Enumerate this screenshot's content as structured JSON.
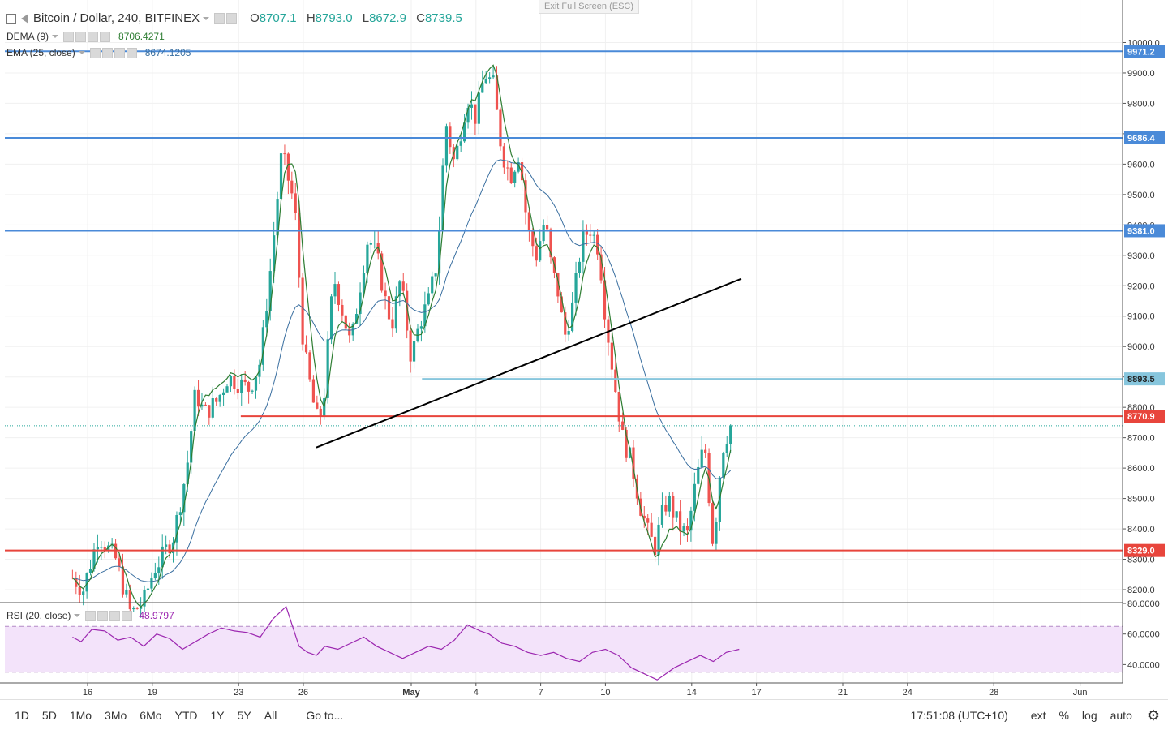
{
  "legend": {
    "symbol": "Bitcoin / Dollar, 240, BITFINEX",
    "open_label": "O",
    "open": "8707.1",
    "high_label": "H",
    "high": "8793.0",
    "low_label": "L",
    "low": "8672.9",
    "close_label": "C",
    "close": "8739.5",
    "dema_label": "DEMA (9)",
    "dema_value": "8706.4271",
    "ema_label": "EMA (25, close)",
    "ema_value": "8674.1205",
    "rsi_label": "RSI (20, close)",
    "rsi_value": "48.9797"
  },
  "exit_fullscreen": "Exit Full Screen (ESC)",
  "toolbar": {
    "ranges": [
      "1D",
      "5D",
      "1Mo",
      "3Mo",
      "6Mo",
      "YTD",
      "1Y",
      "5Y",
      "All"
    ],
    "goto": "Go to...",
    "time": "17:51:08 (UTC+10)",
    "ext": "ext",
    "percent": "%",
    "log": "log",
    "auto": "auto"
  },
  "colors": {
    "up": "#26a69a",
    "down": "#ef5350",
    "support_resistance_blue": "#4a8ad8",
    "support_resistance_red": "#e8453c",
    "light_blue": "#87c6dd",
    "dema": "#2e7d32",
    "ema": "#3a6fa0",
    "rsi": "#9c27b0"
  },
  "chart_data": {
    "type": "candlestick",
    "price_axis": {
      "ticks": [
        "10000.0",
        "9900.0",
        "9800.0",
        "9700.0",
        "9600.0",
        "9500.0",
        "9400.0",
        "9300.0",
        "9200.0",
        "9100.0",
        "9000.0",
        "8900.0",
        "8800.0",
        "8700.0",
        "8600.0",
        "8500.0",
        "8400.0",
        "8300.0",
        "8200.0"
      ],
      "range": [
        8160,
        10060
      ]
    },
    "time_axis": {
      "labels": [
        "16",
        "19",
        "23",
        "26",
        "May",
        "4",
        "7",
        "10",
        "14",
        "17",
        "21",
        "24",
        "28",
        "Jun"
      ],
      "positions_days": [
        -15,
        -12,
        -8,
        -5,
        0,
        3,
        6,
        9,
        13,
        16,
        20,
        23,
        27,
        31
      ]
    },
    "horizontal_levels": [
      {
        "value": 9971.2,
        "label": "9971.2",
        "color": "blue"
      },
      {
        "value": 9686.4,
        "label": "9686.4",
        "color": "blue"
      },
      {
        "value": 9381.0,
        "label": "9381.0",
        "color": "blue"
      },
      {
        "value": 8893.5,
        "label": "8893.5",
        "color": "lightblue",
        "from_day": 0.5
      },
      {
        "value": 8770.9,
        "label": "8770.9",
        "color": "red",
        "from_day": -7.9
      },
      {
        "value": 8329.0,
        "label": "8329.0",
        "color": "red"
      }
    ],
    "last_price": 8739.5,
    "trendline": {
      "from": [
        -4.4,
        8668
      ],
      "to": [
        15.3,
        9223
      ]
    },
    "price_path_days": [
      -15.7,
      -15.2,
      -14.5,
      -13.7,
      -13.0,
      -12.4,
      -11.9,
      -11.6,
      -11.0,
      -10.4,
      -10.0,
      -9.6,
      -9.0,
      -8.5,
      -8.0,
      -7.5,
      -7.0,
      -6.5,
      -6.0,
      -5.4,
      -5.0,
      -4.7,
      -4.4,
      -4.1,
      -3.6,
      -3.2,
      -2.8,
      -2.4,
      -2.0,
      -1.6,
      -1.2,
      -0.9,
      -0.5,
      0.0,
      0.4,
      0.8,
      1.2,
      1.6,
      2.0,
      2.6,
      3.0,
      3.4,
      3.8,
      4.2,
      4.6,
      5.0,
      5.4,
      5.8,
      6.2,
      6.5,
      6.8,
      7.1,
      7.5,
      7.9,
      8.3,
      8.7,
      9.0,
      9.4,
      9.8,
      10.2,
      10.6,
      11.0,
      11.3,
      11.6,
      11.9,
      12.2,
      12.5,
      12.8,
      13.2,
      13.6,
      14.0,
      14.4,
      14.8
    ],
    "price_path_close": [
      8240,
      8200,
      8380,
      8300,
      8120,
      8160,
      8270,
      8300,
      8380,
      8600,
      8850,
      8780,
      8820,
      8900,
      8880,
      8860,
      8950,
      9270,
      9640,
      9460,
      9000,
      8880,
      8760,
      8790,
      9230,
      9120,
      9000,
      9190,
      9360,
      9300,
      9150,
      9070,
      9220,
      8960,
      9080,
      9150,
      9280,
      9740,
      9600,
      9820,
      9750,
      9900,
      9860,
      9640,
      9560,
      9640,
      9380,
      9300,
      9420,
      9260,
      9180,
      9030,
      9140,
      9350,
      9390,
      9320,
      9100,
      8890,
      8700,
      8620,
      8480,
      8380,
      8340,
      8440,
      8500,
      8440,
      8400,
      8380,
      8560,
      8680,
      8340,
      8660,
      8740
    ],
    "rsi": {
      "axis_ticks": [
        "80.0000",
        "60.0000",
        "40.0000"
      ],
      "band": [
        35,
        65
      ],
      "range": [
        28,
        80
      ],
      "path_days": [
        -15.7,
        -15.3,
        -14.8,
        -14.2,
        -13.6,
        -13.0,
        -12.4,
        -11.8,
        -11.2,
        -10.6,
        -10.0,
        -9.4,
        -8.8,
        -8.2,
        -7.6,
        -7.0,
        -6.4,
        -5.8,
        -5.2,
        -4.8,
        -4.4,
        -4.0,
        -3.4,
        -2.8,
        -2.2,
        -1.6,
        -1.0,
        -0.4,
        0.2,
        0.8,
        1.4,
        2.0,
        2.6,
        3.2,
        3.6,
        4.2,
        4.8,
        5.4,
        6.0,
        6.6,
        7.2,
        7.8,
        8.4,
        9.0,
        9.6,
        10.2,
        10.8,
        11.4,
        11.8,
        12.2,
        12.8,
        13.4,
        14.0,
        14.6,
        15.2
      ],
      "path_values": [
        58,
        55,
        63,
        62,
        56,
        58,
        52,
        60,
        57,
        50,
        55,
        60,
        64,
        62,
        61,
        58,
        70,
        78,
        52,
        48,
        46,
        52,
        50,
        54,
        58,
        52,
        48,
        44,
        48,
        52,
        50,
        56,
        66,
        62,
        60,
        54,
        52,
        48,
        46,
        48,
        44,
        42,
        48,
        50,
        46,
        38,
        34,
        30,
        34,
        38,
        42,
        46,
        42,
        48,
        50
      ]
    }
  }
}
